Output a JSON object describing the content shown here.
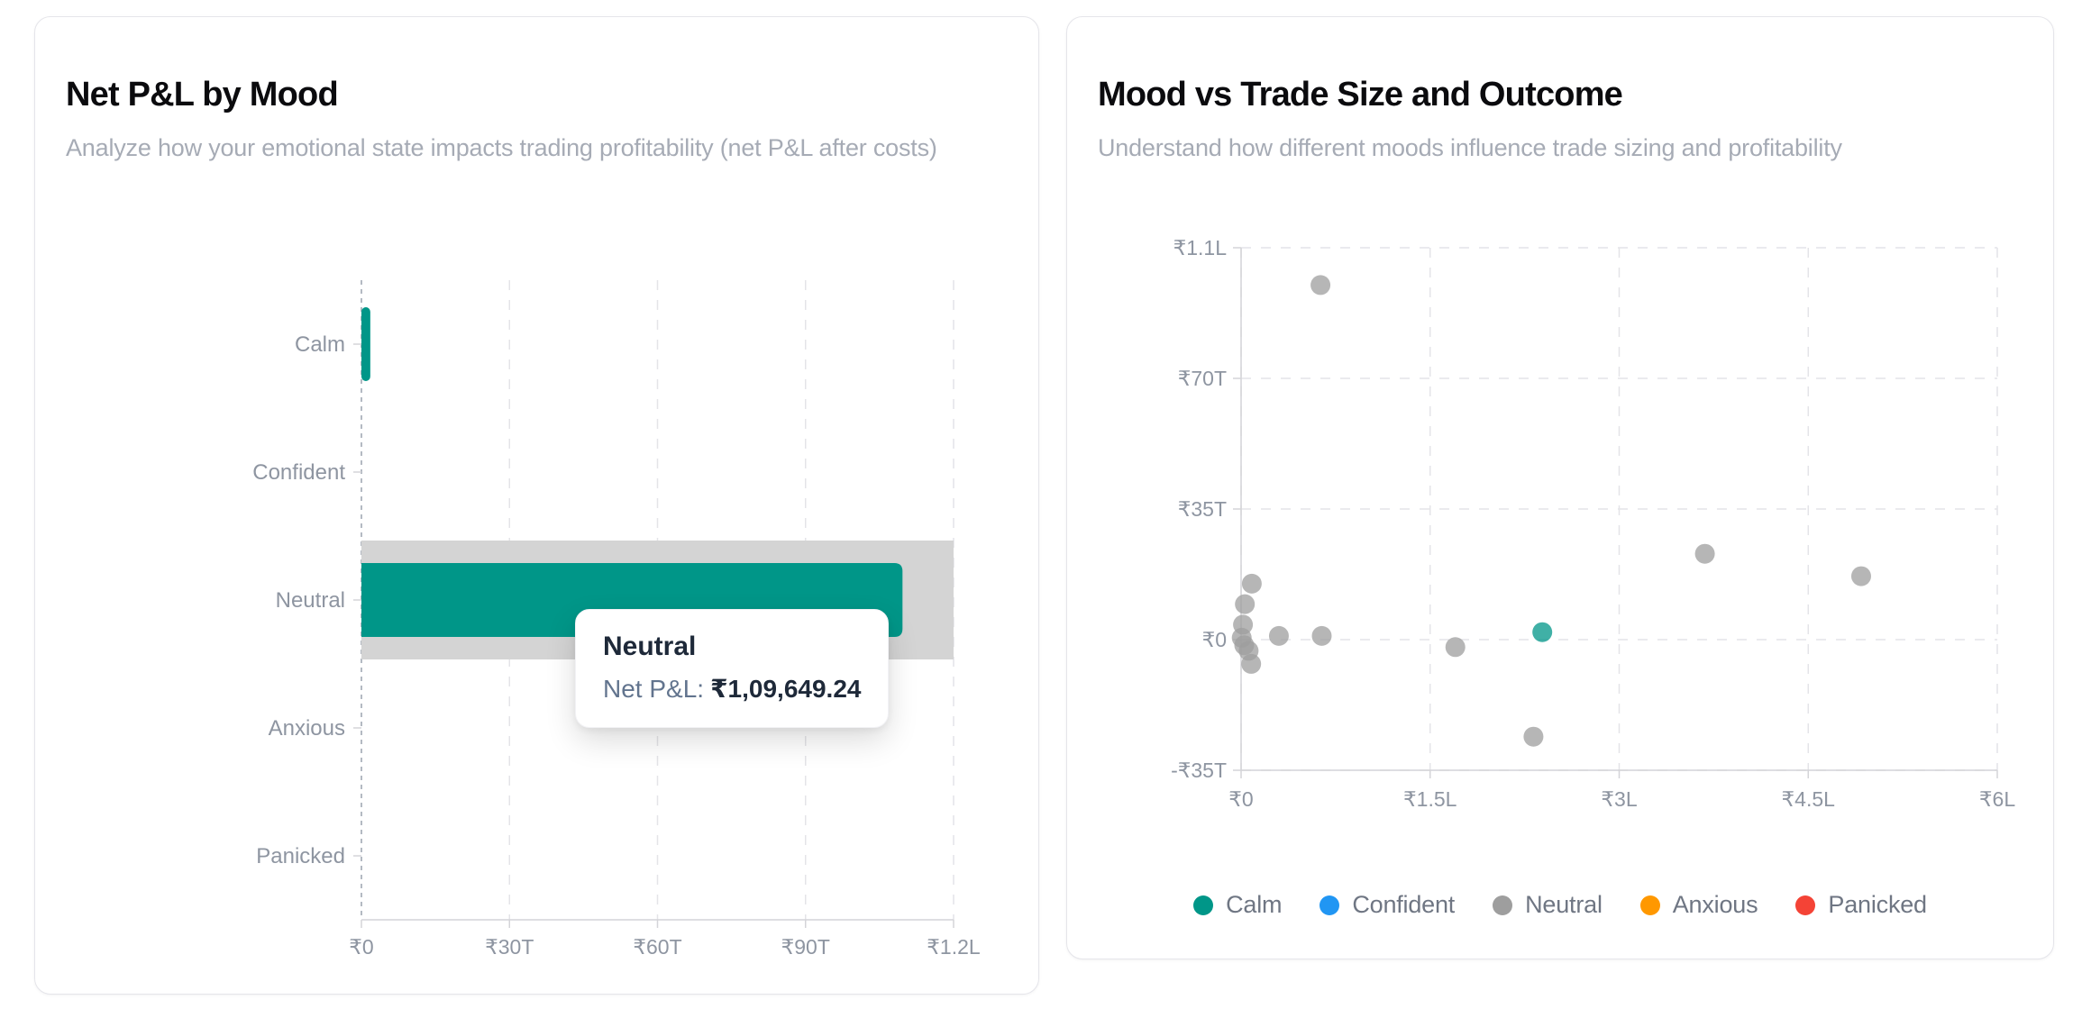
{
  "chart_data": [
    {
      "type": "bar",
      "orientation": "horizontal",
      "title": "Net P&L by Mood",
      "subtitle": "Analyze how your emotional state impacts trading profitability (net P&L after costs)",
      "categories": [
        "Calm",
        "Confident",
        "Neutral",
        "Anxious",
        "Panicked"
      ],
      "values": [
        1800,
        0,
        109649.24,
        0,
        0
      ],
      "xlim": [
        0,
        120000
      ],
      "x_ticks": {
        "labels": [
          "₹0",
          "₹30T",
          "₹60T",
          "₹90T",
          "₹1.2L"
        ],
        "values": [
          0,
          30000,
          60000,
          90000,
          120000
        ]
      },
      "grid": "dashed-vertical",
      "bar_color": "#009688",
      "hover": {
        "category": "Neutral",
        "cursor_color": "#d4d4d4",
        "tooltip": {
          "title": "Neutral",
          "label": "Net P&L:",
          "value": "₹1,09,649.24"
        }
      }
    },
    {
      "type": "scatter",
      "title": "Mood vs Trade Size and Outcome",
      "subtitle": "Understand how different moods influence trade sizing and profitability",
      "xlim": [
        0,
        600000
      ],
      "ylim": [
        -35000,
        105000
      ],
      "x_ticks": {
        "labels": [
          "₹0",
          "₹1.5L",
          "₹3L",
          "₹4.5L",
          "₹6L"
        ],
        "values": [
          0,
          150000,
          300000,
          450000,
          600000
        ]
      },
      "y_ticks": {
        "labels": [
          "₹1.1L",
          "₹70T",
          "₹35T",
          "₹0",
          "-₹35T"
        ],
        "values": [
          105000,
          70000,
          35000,
          0,
          -35000
        ]
      },
      "grid": "dashed",
      "legend_position": "bottom",
      "series": [
        {
          "name": "Calm",
          "color": "#009688",
          "points": [
            [
              239000,
              2000
            ]
          ]
        },
        {
          "name": "Confident",
          "color": "#2196f3",
          "points": []
        },
        {
          "name": "Neutral",
          "color": "#9e9e9e",
          "points": [
            [
              63000,
              95000
            ],
            [
              8500,
              15000
            ],
            [
              3000,
              9500
            ],
            [
              1500,
              4000
            ],
            [
              500,
              500
            ],
            [
              2500,
              -1500
            ],
            [
              6000,
              -3000
            ],
            [
              8000,
              -6500
            ],
            [
              30000,
              1000
            ],
            [
              64000,
              1000
            ],
            [
              170000,
              -2000
            ],
            [
              232000,
              -26000
            ],
            [
              368000,
              23000
            ],
            [
              492000,
              17000
            ]
          ]
        },
        {
          "name": "Anxious",
          "color": "#ff9800",
          "points": []
        },
        {
          "name": "Panicked",
          "color": "#f44336",
          "points": []
        }
      ]
    }
  ],
  "colors": {
    "grid_light": "#e4e4e8",
    "grid_zero": "#9ca3af",
    "axis_line": "#d4d4d8",
    "tick_text": "#8e95a1",
    "legend_text": "#6f7683"
  }
}
